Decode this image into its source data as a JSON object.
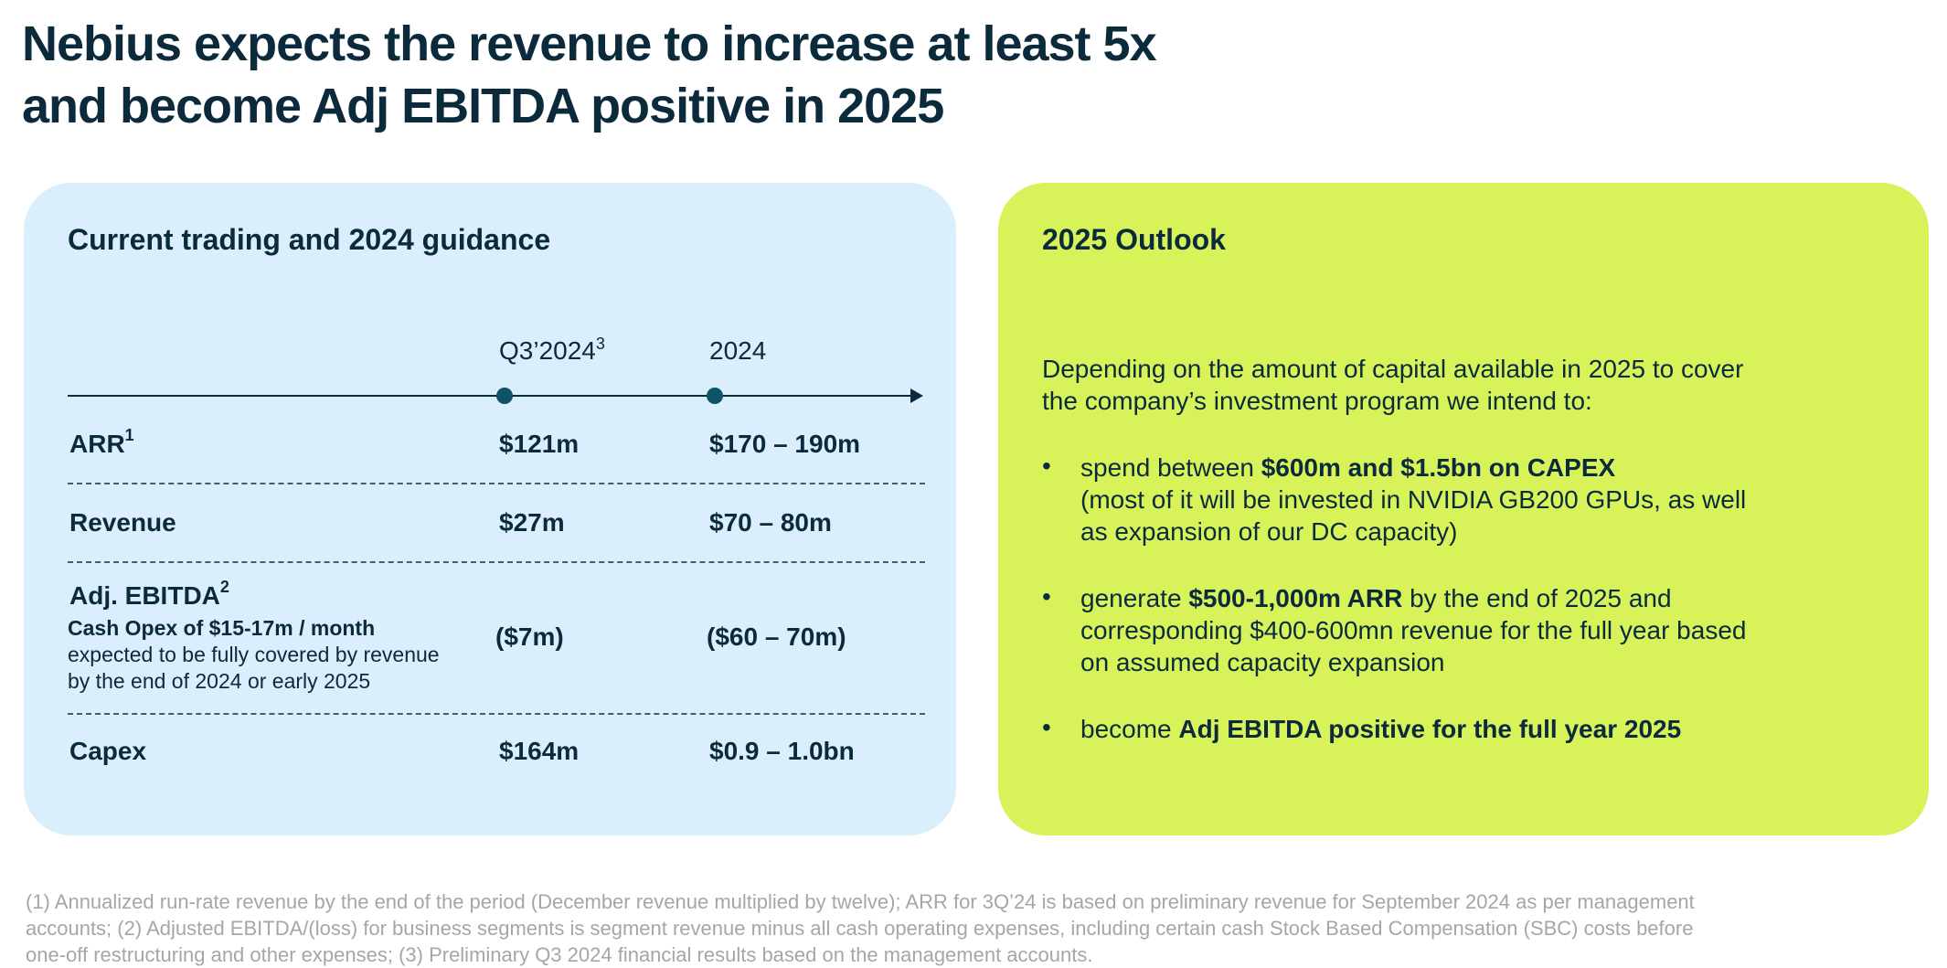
{
  "title": {
    "line1": "Nebius expects the revenue to increase at least 5x",
    "line2": "and become Adj EBITDA positive in 2025"
  },
  "left_panel": {
    "heading": "Current trading and 2024 guidance",
    "columns": {
      "q3_label": "Q3’2024",
      "q3_sup": "3",
      "fy_label": "2024"
    },
    "rows": {
      "arr": {
        "label": "ARR",
        "sup": "1",
        "q3": "$121m",
        "fy": "$170 – 190m"
      },
      "revenue": {
        "label": "Revenue",
        "q3": "$27m",
        "fy": "$70 – 80m"
      },
      "ebitda": {
        "label": "Adj. EBITDA",
        "sup": "2",
        "note_bold": "Cash Opex of $15-17m / month",
        "note_line1": "expected to be fully covered by revenue",
        "note_line2": "by the end of 2024 or early 2025",
        "q3": "($7m)",
        "fy": "($60 – 70m)"
      },
      "capex": {
        "label": "Capex",
        "q3": "$164m",
        "fy": "$0.9 – 1.0bn"
      }
    }
  },
  "right_panel": {
    "heading": "2025 Outlook",
    "intro_line1": "Depending on the amount of capital available in 2025 to cover",
    "intro_line2": "the company’s investment program we intend to:",
    "bullet_char": "•",
    "bullets": {
      "b1": {
        "pre": "spend between ",
        "bold": "$600m and $1.5bn on CAPEX",
        "line2": "(most of it will be invested in NVIDIA GB200 GPUs, as well",
        "line3": "as expansion of our DC capacity)"
      },
      "b2": {
        "pre": "generate ",
        "bold": "$500-1,000m ARR",
        "post": " by the end of 2025 and",
        "line2": "corresponding $400-600mn revenue for the full year based",
        "line3": "on assumed capacity expansion"
      },
      "b3": {
        "pre": "become ",
        "bold": "Adj EBITDA positive for the full year 2025"
      }
    }
  },
  "footnote": {
    "line1": "(1) Annualized run-rate revenue by the end of the period (December revenue multiplied by twelve); ARR for 3Q’24 is based on preliminary revenue for September 2024 as per management",
    "line2": "accounts; (2) Adjusted EBITDA/(loss) for business segments is segment revenue minus all cash operating expenses, including certain cash Stock Based Compensation (SBC) costs before",
    "line3": "one-off restructuring and other expenses; (3) Preliminary Q3 2024 financial results based on the management accounts."
  },
  "colors": {
    "text_dark": "#0b2a3c",
    "left_panel_bg": "#dbeefb",
    "right_panel_bg": "#d8f25a",
    "timeline_dot": "#0e5466",
    "footnote_text": "#a6a6a6"
  }
}
